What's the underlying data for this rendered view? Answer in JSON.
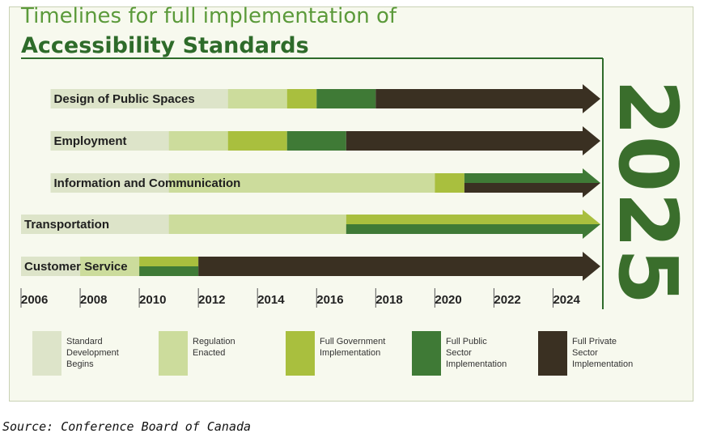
{
  "title_line1": "Timelines for full implementation of",
  "title_line2": "Accessibility Standards",
  "source": "Source: Conference Board of Canada",
  "chart_data": {
    "type": "bar",
    "subtype": "timeline-gantt",
    "x_range": [
      2006,
      2025
    ],
    "x_ticks": [
      "2006",
      "2008",
      "2010",
      "2012",
      "2014",
      "2016",
      "2018",
      "2020",
      "2022",
      "2024"
    ],
    "end_year_label": "2025",
    "colors": {
      "standard_development": "#dde4c9",
      "regulation_enacted": "#ccdc9c",
      "full_government": "#a9bf3e",
      "full_public": "#3f7a36",
      "full_private": "#3a3022"
    },
    "phases": [
      {
        "key": "standard_development",
        "label": "Standard Development Begins"
      },
      {
        "key": "regulation_enacted",
        "label": "Regulation Enacted"
      },
      {
        "key": "full_government",
        "label": "Full Government Implementation"
      },
      {
        "key": "full_public",
        "label": "Full Public Sector Implementation"
      },
      {
        "key": "full_private",
        "label": "Full Private Sector Implementation"
      }
    ],
    "rows": [
      {
        "label": "Design of Public Spaces",
        "segments": [
          {
            "phase": "standard_development",
            "start": 2007,
            "end": 2013
          },
          {
            "phase": "regulation_enacted",
            "start": 2013,
            "end": 2015
          },
          {
            "phase": "full_government",
            "start": 2015,
            "end": 2016
          },
          {
            "phase": "full_public",
            "start": 2016,
            "end": 2018
          },
          {
            "phase": "full_private",
            "start": 2018,
            "end": 2025
          }
        ]
      },
      {
        "label": "Employment",
        "segments": [
          {
            "phase": "standard_development",
            "start": 2007,
            "end": 2011
          },
          {
            "phase": "regulation_enacted",
            "start": 2011,
            "end": 2013
          },
          {
            "phase": "full_government",
            "start": 2013,
            "end": 2015
          },
          {
            "phase": "full_public",
            "start": 2015,
            "end": 2017
          },
          {
            "phase": "full_private",
            "start": 2017,
            "end": 2025
          }
        ]
      },
      {
        "label": "Information and Communication",
        "segments": [
          {
            "phase": "standard_development",
            "start": 2007,
            "end": 2011
          },
          {
            "phase": "regulation_enacted",
            "start": 2011,
            "end": 2020
          },
          {
            "phase": "full_government",
            "start": 2020,
            "end": 2021
          },
          {
            "phase": "full_public",
            "start": 2021,
            "end": 2025,
            "band": "top"
          },
          {
            "phase": "full_private",
            "start": 2021,
            "end": 2025,
            "band": "bottom"
          }
        ]
      },
      {
        "label": "Transportation",
        "segments": [
          {
            "phase": "standard_development",
            "start": 2006,
            "end": 2011
          },
          {
            "phase": "regulation_enacted",
            "start": 2011,
            "end": 2017
          },
          {
            "phase": "full_government",
            "start": 2017,
            "end": 2025,
            "band": "top"
          },
          {
            "phase": "full_public",
            "start": 2017,
            "end": 2025,
            "band": "bottom"
          }
        ]
      },
      {
        "label": "Customer Service",
        "segments": [
          {
            "phase": "standard_development",
            "start": 2006,
            "end": 2008
          },
          {
            "phase": "regulation_enacted",
            "start": 2008,
            "end": 2010
          },
          {
            "phase": "full_government",
            "start": 2010,
            "end": 2012,
            "band": "top"
          },
          {
            "phase": "full_public",
            "start": 2010,
            "end": 2012,
            "band": "bottom"
          },
          {
            "phase": "full_private",
            "start": 2012,
            "end": 2025
          }
        ]
      }
    ]
  }
}
